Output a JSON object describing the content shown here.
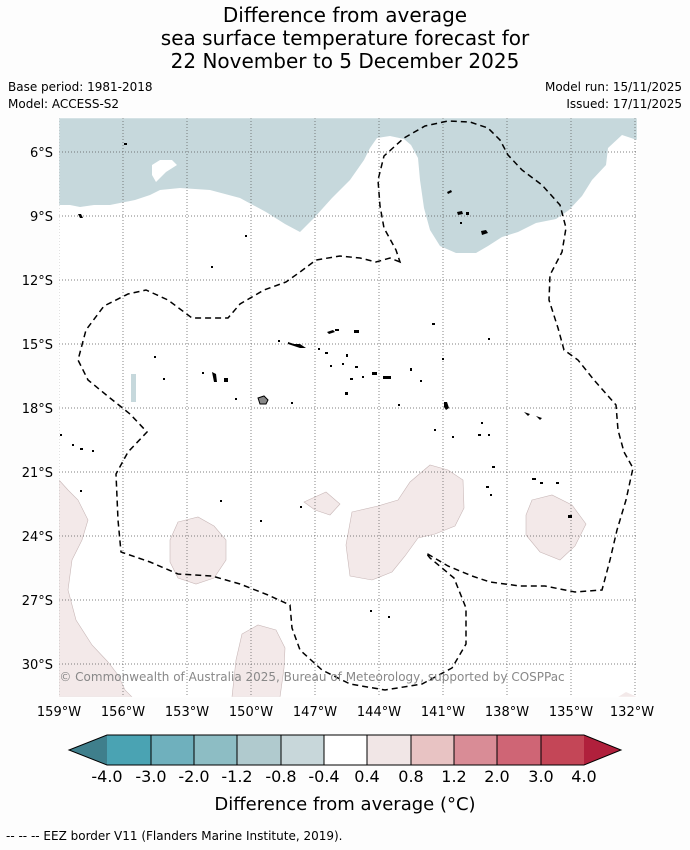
{
  "title": {
    "line1": "Difference from average",
    "line2": "sea surface temperature forecast for",
    "line3": "22 November to 5 December 2025"
  },
  "meta": {
    "base_period": "Base period: 1981-2018",
    "model": "Model: ACCESS-S2",
    "model_run": "Model run: 15/11/2025",
    "issued": "Issued: 17/11/2025"
  },
  "map": {
    "region": "South-central Pacific (French Polynesia)",
    "lat_labels": [
      "6°S",
      "9°S",
      "12°S",
      "15°S",
      "18°S",
      "21°S",
      "24°S",
      "27°S",
      "30°S"
    ],
    "lon_labels": [
      "159°W",
      "156°W",
      "153°W",
      "150°W",
      "147°W",
      "144°W",
      "141°W",
      "138°W",
      "135°W",
      "132°W"
    ],
    "copyright": "© Commonwealth of Australia 2025, Bureau of Meteorology, supported by COSPPac"
  },
  "colorbar": {
    "ticks": [
      "-4.0",
      "-3.0",
      "-2.0",
      "-1.2",
      "-0.8",
      "-0.4",
      "0.4",
      "0.8",
      "1.2",
      "2.0",
      "3.0",
      "4.0"
    ],
    "colors": [
      "#3f7f8c",
      "#4aa3b3",
      "#6fb0bd",
      "#8dbdc4",
      "#b0cace",
      "#c8d7da",
      "#ffffff",
      "#f1e6e6",
      "#e8c3c3",
      "#d98c96",
      "#cf6575",
      "#c44657",
      "#b0203c"
    ],
    "label": "Difference from average (°C)"
  },
  "footnote": "-- -- -- EEZ border V11 (Flanders Marine Institute, 2019)."
}
